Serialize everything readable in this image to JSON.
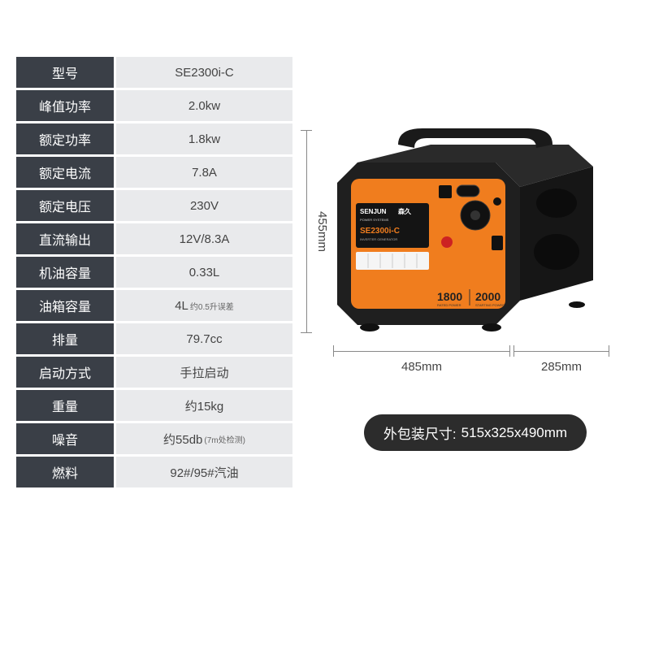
{
  "specs": [
    {
      "label": "型号",
      "value": "SE2300i-C"
    },
    {
      "label": "峰值功率",
      "value": "2.0kw"
    },
    {
      "label": "额定功率",
      "value": "1.8kw"
    },
    {
      "label": "额定电流",
      "value": "7.8A"
    },
    {
      "label": "额定电压",
      "value": "230V"
    },
    {
      "label": "直流输出",
      "value": "12V/8.3A"
    },
    {
      "label": "机油容量",
      "value": "0.33L"
    },
    {
      "label": "油箱容量",
      "value": "4L",
      "sub": "约0.5升误差"
    },
    {
      "label": "排量",
      "value": "79.7cc"
    },
    {
      "label": "启动方式",
      "value": "手拉启动"
    },
    {
      "label": "重量",
      "value": "约15kg"
    },
    {
      "label": "噪音",
      "value": "约55db",
      "sub": "(7m处检测)"
    },
    {
      "label": "燃料",
      "value": "92#/95#汽油"
    }
  ],
  "dimensions": {
    "height": "455mm",
    "width": "485mm",
    "depth": "285mm"
  },
  "packaging": {
    "label": "外包装尺寸:",
    "value": "515x325x490mm"
  },
  "product": {
    "brand": "SENJUN",
    "brand_cn": "森久",
    "subtitle": "POWER SYSTEMS",
    "model": "SE2300i-C",
    "model_sub": "INVERTER GENERATOR",
    "wattage_rated": "1800",
    "wattage_rated_label": "RATED POWER",
    "wattage_peak": "2000",
    "wattage_peak_label": "STARTING POWER"
  },
  "colors": {
    "table_label_bg": "#3a3f47",
    "table_value_bg": "#e9eaec",
    "generator_orange": "#f07d1e",
    "generator_body_dark": "#1f1f1f",
    "generator_body_grey": "#2e2e2e",
    "dim_line": "#888888",
    "pill_bg": "#2c2c2c"
  }
}
